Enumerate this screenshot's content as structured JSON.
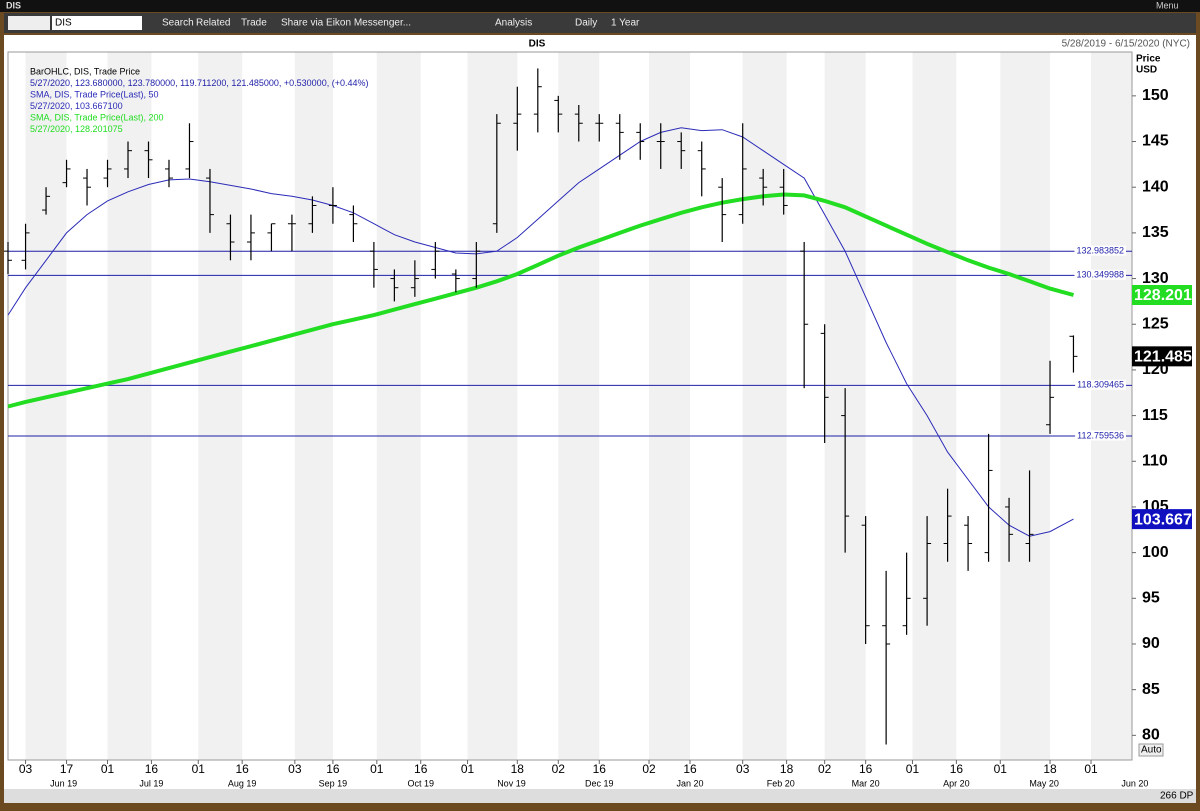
{
  "window": {
    "title": "DIS",
    "menu": "Menu"
  },
  "toolbar": {
    "symbol": "DIS",
    "items": [
      "Search",
      "Related",
      "Trade",
      "Share via Eikon Messenger...",
      "Analysis",
      "Daily",
      "1 Year"
    ]
  },
  "chart_data": {
    "type": "ohlc",
    "title": "DIS",
    "range_label": "5/28/2019 - 6/15/2020 (NYC)",
    "y_label": "Price",
    "y_unit": "USD",
    "scale_mode": "Auto",
    "points_label": "266 DP",
    "xlim": [
      "2019-05-28",
      "2020-06-15"
    ],
    "ylim": [
      77.3,
      154.8
    ],
    "yticks": [
      80,
      85,
      90,
      95,
      100,
      105,
      110,
      115,
      120,
      125,
      130,
      135,
      140,
      145,
      150
    ],
    "xticks": [
      {
        "value": "2019-06-03",
        "label": "03"
      },
      {
        "value": "2019-06-17",
        "label": "17"
      },
      {
        "value": "2019-07-01",
        "label": "01"
      },
      {
        "value": "2019-07-16",
        "label": "16"
      },
      {
        "value": "2019-08-01",
        "label": "01"
      },
      {
        "value": "2019-08-16",
        "label": "16"
      },
      {
        "value": "2019-09-03",
        "label": "03"
      },
      {
        "value": "2019-09-16",
        "label": "16"
      },
      {
        "value": "2019-10-01",
        "label": "01"
      },
      {
        "value": "2019-10-16",
        "label": "16"
      },
      {
        "value": "2019-11-01",
        "label": "01"
      },
      {
        "value": "2019-11-18",
        "label": "18"
      },
      {
        "value": "2019-12-02",
        "label": "02"
      },
      {
        "value": "2019-12-16",
        "label": "16"
      },
      {
        "value": "2020-01-02",
        "label": "02"
      },
      {
        "value": "2020-01-16",
        "label": "16"
      },
      {
        "value": "2020-02-03",
        "label": "03"
      },
      {
        "value": "2020-02-18",
        "label": "18"
      },
      {
        "value": "2020-03-02",
        "label": "02"
      },
      {
        "value": "2020-03-16",
        "label": "16"
      },
      {
        "value": "2020-04-01",
        "label": "01"
      },
      {
        "value": "2020-04-16",
        "label": "16"
      },
      {
        "value": "2020-05-01",
        "label": "01"
      },
      {
        "value": "2020-05-18",
        "label": "18"
      },
      {
        "value": "2020-06-01",
        "label": "01"
      }
    ],
    "month_ticks": [
      {
        "value": "2019-06",
        "label": "Jun 19"
      },
      {
        "value": "2019-07",
        "label": "Jul 19"
      },
      {
        "value": "2019-08",
        "label": "Aug 19"
      },
      {
        "value": "2019-09",
        "label": "Sep 19"
      },
      {
        "value": "2019-10",
        "label": "Oct 19"
      },
      {
        "value": "2019-11",
        "label": "Nov 19"
      },
      {
        "value": "2019-12",
        "label": "Dec 19"
      },
      {
        "value": "2020-01",
        "label": "Jan 20"
      },
      {
        "value": "2020-02",
        "label": "Feb 20"
      },
      {
        "value": "2020-03",
        "label": "Mar 20"
      },
      {
        "value": "2020-04",
        "label": "Apr 20"
      },
      {
        "value": "2020-05",
        "label": "May 20"
      },
      {
        "value": "2020-06",
        "label": "Jun 20"
      }
    ],
    "levels": [
      132.983852,
      130.349988,
      118.309465,
      112.759536
    ],
    "level_color": "#1f1fa8",
    "x": [
      "2019-05-28",
      "2019-06-03",
      "2019-06-10",
      "2019-06-17",
      "2019-06-24",
      "2019-07-01",
      "2019-07-08",
      "2019-07-15",
      "2019-07-22",
      "2019-07-29",
      "2019-08-05",
      "2019-08-12",
      "2019-08-19",
      "2019-08-26",
      "2019-09-02",
      "2019-09-09",
      "2019-09-16",
      "2019-09-23",
      "2019-09-30",
      "2019-10-07",
      "2019-10-14",
      "2019-10-21",
      "2019-10-28",
      "2019-11-04",
      "2019-11-11",
      "2019-11-18",
      "2019-11-25",
      "2019-12-02",
      "2019-12-09",
      "2019-12-16",
      "2019-12-23",
      "2019-12-30",
      "2020-01-06",
      "2020-01-13",
      "2020-01-20",
      "2020-01-27",
      "2020-02-03",
      "2020-02-10",
      "2020-02-17",
      "2020-02-24",
      "2020-03-02",
      "2020-03-09",
      "2020-03-16",
      "2020-03-23",
      "2020-03-30",
      "2020-04-06",
      "2020-04-13",
      "2020-04-20",
      "2020-04-27",
      "2020-05-04",
      "2020-05-11",
      "2020-05-18",
      "2020-05-26"
    ],
    "ohlc": {
      "name": "BarOHLC, DIS, Trade Price",
      "detail": "5/27/2020, 123.680000, 123.780000, 119.711200, 121.485000, +0.530000, (+0.44%)",
      "color": "#000000",
      "box_color": "#000000",
      "last_label": "121.485",
      "open": [
        133,
        132,
        137.5,
        140.5,
        141,
        141,
        142,
        144,
        142,
        142,
        141,
        136,
        134,
        135,
        136,
        136,
        138,
        137,
        133,
        130,
        129,
        131,
        130.5,
        130,
        136,
        147,
        148,
        149.5,
        148,
        147,
        147,
        146,
        145,
        145,
        144,
        140,
        137,
        141,
        140,
        133,
        124,
        115,
        103,
        92,
        92,
        95,
        101,
        103,
        100,
        105,
        101,
        114,
        123.68
      ],
      "high": [
        134,
        136,
        140,
        143,
        142,
        143,
        145,
        145,
        143,
        147,
        142,
        137,
        137,
        136,
        137,
        139,
        140,
        138,
        134,
        131,
        132,
        134,
        131,
        134,
        148,
        151,
        153,
        150,
        149,
        148,
        148,
        147,
        147,
        146,
        145,
        141,
        147,
        142,
        142,
        134,
        125,
        118,
        104,
        98,
        100,
        104,
        107,
        104,
        113,
        106,
        109,
        121,
        123.78
      ],
      "low": [
        130.5,
        131,
        137,
        140,
        138,
        140,
        141,
        141,
        140,
        141,
        135,
        132,
        132,
        133,
        133,
        135,
        136,
        134,
        129,
        127.5,
        128,
        130,
        128.5,
        129,
        135,
        144,
        146,
        146,
        145,
        145,
        143,
        143,
        142,
        142,
        139,
        134,
        136,
        138,
        137,
        118,
        112,
        100,
        90,
        79,
        91,
        92,
        99,
        98,
        99,
        99,
        99,
        113,
        119.7112
      ],
      "close": [
        132,
        135,
        139,
        142,
        140,
        142,
        144,
        143,
        141,
        145,
        137,
        134,
        135,
        136,
        136,
        138,
        138,
        136,
        131,
        129,
        130,
        133,
        130,
        133,
        147,
        148,
        151,
        148,
        147,
        147,
        146,
        145,
        145,
        144,
        142,
        137,
        142,
        140,
        138,
        125,
        117,
        104,
        92,
        90,
        95,
        101,
        104,
        101,
        109,
        102,
        102,
        117,
        121.485
      ]
    },
    "series": [
      {
        "name": "SMA, DIS, Trade Price(Last),  50",
        "detail": "5/27/2020, 103.667100",
        "color": "#2b2bb8",
        "width": 1,
        "last_label": "103.667",
        "values": [
          126,
          129,
          132,
          135,
          137,
          138.5,
          139.5,
          140.3,
          140.8,
          140.9,
          140.6,
          140.2,
          139.8,
          139.3,
          139,
          138.6,
          138,
          137.2,
          136,
          134.8,
          134,
          133.4,
          132.8,
          132.7,
          133,
          134.5,
          136.5,
          138.5,
          140.5,
          142,
          143.5,
          145,
          146,
          146.5,
          146.2,
          146.3,
          145.5,
          144,
          142.5,
          141,
          137,
          133,
          128,
          123,
          118.5,
          115,
          111,
          108,
          105,
          103,
          101.8,
          102.3,
          103.6671
        ]
      },
      {
        "name": "SMA, DIS, Trade Price(Last),  200",
        "detail": "5/27/2020, 128.201075",
        "color": "#22dd22",
        "width": 4,
        "last_label": "128.201",
        "values": [
          116,
          116.5,
          117,
          117.5,
          118,
          118.5,
          119,
          119.6,
          120.2,
          120.8,
          121.4,
          122,
          122.6,
          123.2,
          123.8,
          124.4,
          125,
          125.5,
          126,
          126.6,
          127.2,
          127.8,
          128.4,
          129,
          129.7,
          130.5,
          131.5,
          132.5,
          133.4,
          134.2,
          135,
          135.8,
          136.5,
          137.2,
          137.8,
          138.3,
          138.7,
          139,
          139.2,
          139.1,
          138.5,
          137.8,
          136.8,
          135.8,
          134.8,
          133.8,
          132.9,
          132,
          131.2,
          130.5,
          129.7,
          128.9,
          128.201075
        ]
      }
    ]
  }
}
